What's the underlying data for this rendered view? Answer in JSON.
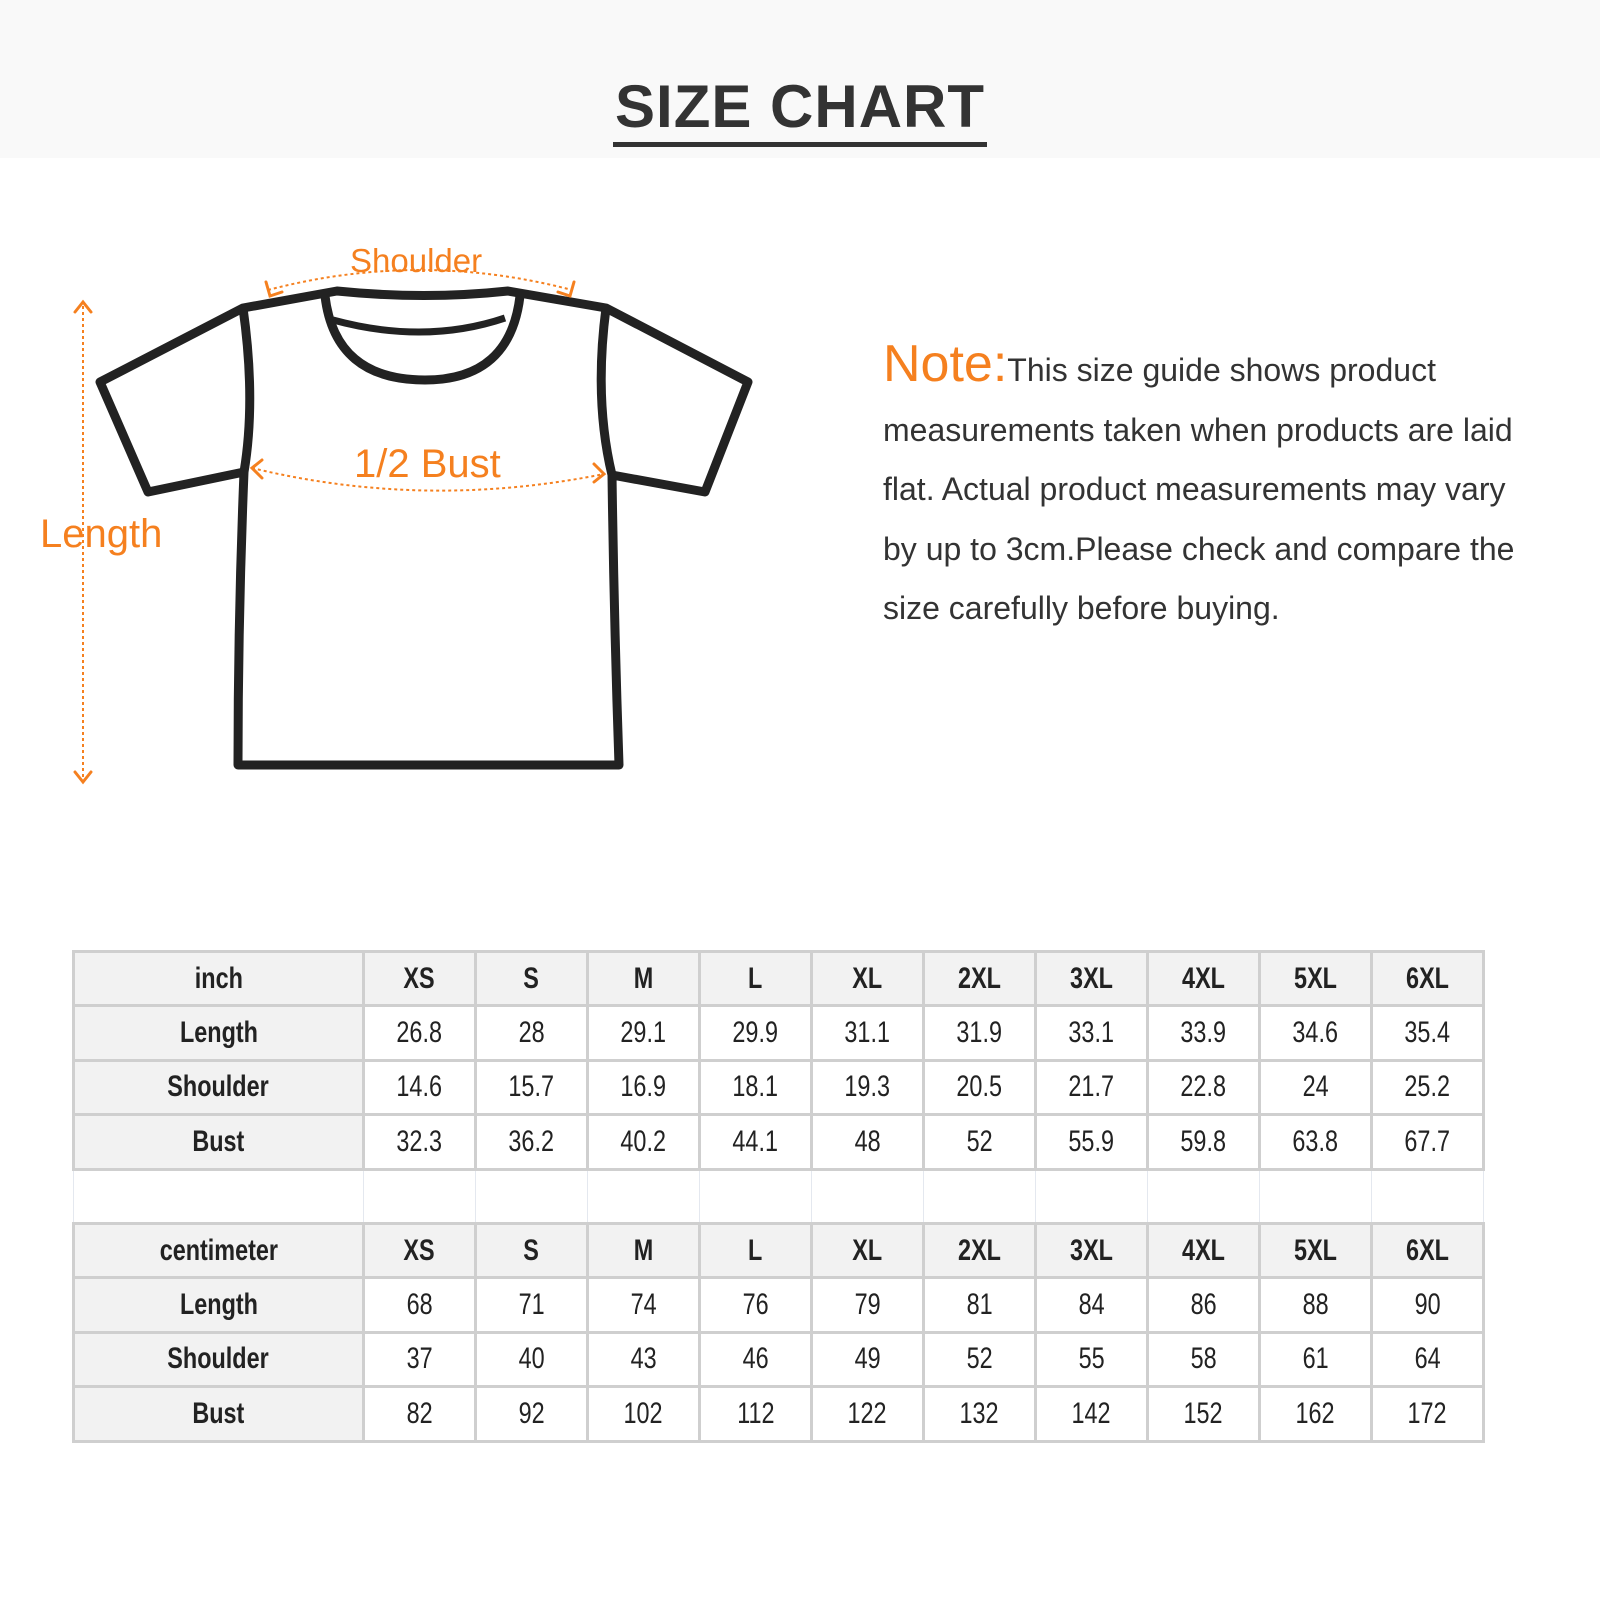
{
  "title": "SIZE CHART",
  "diagram": {
    "shoulder_label": "Shoulder",
    "bust_label": "1/2 Bust",
    "length_label": "Length",
    "accent_color": "#f5801f",
    "outline_color": "#222222"
  },
  "note": {
    "label": "Note:",
    "text": "This size guide shows product measurements taken when products are laid flat. Actual product measurements may vary by up to 3cm.Please check and compare the size carefully before buying."
  },
  "sizes": [
    "XS",
    "S",
    "M",
    "L",
    "XL",
    "2XL",
    "3XL",
    "4XL",
    "5XL",
    "6XL"
  ],
  "inch": {
    "unit_label": "inch",
    "rows": [
      {
        "label": "Length",
        "values": [
          "26.8",
          "28",
          "29.1",
          "29.9",
          "31.1",
          "31.9",
          "33.1",
          "33.9",
          "34.6",
          "35.4"
        ]
      },
      {
        "label": "Shoulder",
        "values": [
          "14.6",
          "15.7",
          "16.9",
          "18.1",
          "19.3",
          "20.5",
          "21.7",
          "22.8",
          "24",
          "25.2"
        ]
      },
      {
        "label": "Bust",
        "values": [
          "32.3",
          "36.2",
          "40.2",
          "44.1",
          "48",
          "52",
          "55.9",
          "59.8",
          "63.8",
          "67.7"
        ]
      }
    ]
  },
  "centimeter": {
    "unit_label": "centimeter",
    "rows": [
      {
        "label": "Length",
        "values": [
          "68",
          "71",
          "74",
          "76",
          "79",
          "81",
          "84",
          "86",
          "88",
          "90"
        ]
      },
      {
        "label": "Shoulder",
        "values": [
          "37",
          "40",
          "43",
          "46",
          "49",
          "52",
          "55",
          "58",
          "61",
          "64"
        ]
      },
      {
        "label": "Bust",
        "values": [
          "82",
          "92",
          "102",
          "112",
          "122",
          "132",
          "142",
          "152",
          "162",
          "172"
        ]
      }
    ]
  }
}
